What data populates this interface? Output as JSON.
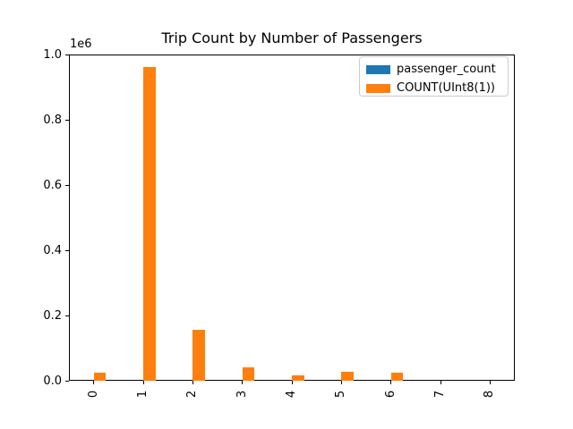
{
  "chart_data": {
    "type": "bar",
    "title": "Trip Count by Number of Passengers",
    "xlabel": "",
    "ylabel": "",
    "categories": [
      "0",
      "1",
      "2",
      "3",
      "4",
      "5",
      "6",
      "7",
      "8"
    ],
    "series": [
      {
        "name": "passenger_count",
        "color": "#1f77b4",
        "values": [
          0,
          1,
          2,
          3,
          4,
          5,
          6,
          7,
          8
        ]
      },
      {
        "name": "COUNT(UInt8(1))",
        "color": "#ff7f0e",
        "values": [
          24000,
          962000,
          155000,
          42000,
          16000,
          28000,
          26000,
          0,
          0
        ]
      }
    ],
    "ylim": [
      0,
      1000000
    ],
    "ytick_labels": [
      "0.0",
      "0.2",
      "0.4",
      "0.6",
      "0.8",
      "1.0"
    ],
    "y_offset_label": "1e6",
    "x_tick_rotation": 90,
    "grid": false,
    "legend_position": "upper right",
    "background_color": "#ffffff",
    "spine_color": "#000000",
    "legend_border_color": "#cccccc"
  }
}
